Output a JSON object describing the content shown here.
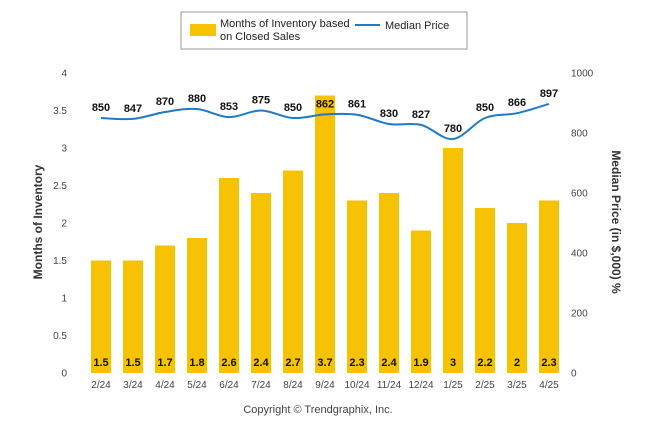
{
  "chart_data": {
    "type": "bar",
    "categories": [
      "2/24",
      "3/24",
      "4/24",
      "5/24",
      "6/24",
      "7/24",
      "8/24",
      "9/24",
      "10/24",
      "11/24",
      "12/24",
      "1/25",
      "2/25",
      "3/25",
      "4/25"
    ],
    "series": [
      {
        "name": "Months of Inventory based on Closed Sales",
        "type": "bar",
        "axis": "left",
        "color": "#F7C300",
        "values": [
          1.5,
          1.5,
          1.7,
          1.8,
          2.6,
          2.4,
          2.7,
          3.7,
          2.3,
          2.4,
          1.9,
          3,
          2.2,
          2,
          2.3
        ]
      },
      {
        "name": "Median Price",
        "type": "line",
        "axis": "right",
        "color": "#1F7AC9",
        "values": [
          850,
          847,
          870,
          880,
          853,
          875,
          850,
          862,
          861,
          830,
          827,
          780,
          850,
          866,
          897
        ]
      }
    ],
    "ylabel": "Months of Inventory",
    "ylim": [
      0,
      4
    ],
    "yticks": [
      "0",
      "0.5",
      "1",
      "1.5",
      "2",
      "2.5",
      "3",
      "3.5",
      "4"
    ],
    "y2label": "Median Price (in $,000) %",
    "y2lim": [
      0,
      1000
    ],
    "y2ticks": [
      "0",
      "200",
      "400",
      "600",
      "800",
      "1000"
    ],
    "legend_labels": [
      "Months of Inventory based",
      "on Closed Sales",
      "Median Price"
    ],
    "legend_position": "top-center",
    "grid": false,
    "footer": "Copyright © Trendgraphix, Inc."
  }
}
